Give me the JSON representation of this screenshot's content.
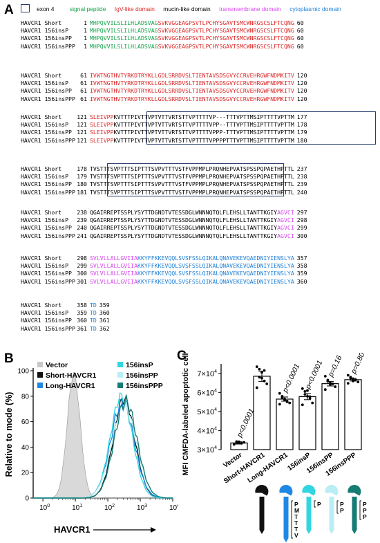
{
  "panels": {
    "a": "A",
    "b": "B",
    "c": "C"
  },
  "legend": {
    "exon4": "exon 4",
    "signal": "signal peptide",
    "igv": "IgV-like domain",
    "mucin": "mucin-like domain",
    "tm": "transmembrane domain",
    "cyto": "cytoplasmic domain"
  },
  "colors": {
    "signal": "#16a34a",
    "igv": "#dc2626",
    "mucin": "#000000",
    "tm": "#d946ef",
    "cyto": "#1d7fd6",
    "exonbox": "#2b3d6d"
  },
  "alignment": [
    {
      "rows": [
        {
          "name": "HAVCR1 Short",
          "start": "1",
          "end": "60",
          "segs": [
            [
              "signal",
              "MHPQVVILSLILHLADSVAG"
            ],
            [
              "igv",
              "SVKVGGEAGPSVTLPCHYSGAVTSMCWNRGSCSLFTCQNG"
            ]
          ]
        },
        {
          "name": "HAVCR1 156insP",
          "start": "1",
          "end": "60",
          "segs": [
            [
              "signal",
              "MHPQVVILSLILHLADSVAG"
            ],
            [
              "igv",
              "SVKVGGEAGPSVTLPCHYSGAVTSMCWNRGSCSLFTCQNG"
            ]
          ]
        },
        {
          "name": "HAVCR1 156insPP",
          "start": "1",
          "end": "60",
          "segs": [
            [
              "signal",
              "MHPQVVILSLILHLADSVAG"
            ],
            [
              "igv",
              "SVKVGGEAGPSVTLPCHYSGAVTSMCWNRGSCSLFTCQNG"
            ]
          ]
        },
        {
          "name": "HAVCR1 156insPPP",
          "start": "1",
          "end": "60",
          "segs": [
            [
              "signal",
              "MHPQVVILSLILHLADSVAG"
            ],
            [
              "igv",
              "SVKVGGEAGPSVTLPCHYSGAVTSMCWNRGSCSLFTCQNG"
            ]
          ]
        }
      ]
    },
    {
      "rows": [
        {
          "name": "HAVCR1 Short",
          "start": "61",
          "end": "120",
          "segs": [
            [
              "igv",
              "IVWTNGTHVTYRKDTRYKLLGDLSRRDVSLTIENTAVSDSGVYCCRVEHRGWFNDMKITV"
            ]
          ]
        },
        {
          "name": "HAVCR1 156insP",
          "start": "61",
          "end": "120",
          "segs": [
            [
              "igv",
              "IVWTNGTHVTYRKDTRYKLLGDLSRRDVSLTIENTAVSDSGVYCCRVEHRGWFNDMKITV"
            ]
          ]
        },
        {
          "name": "HAVCR1 156insPP",
          "start": "61",
          "end": "120",
          "segs": [
            [
              "igv",
              "IVWTNGTHVTYRKDTRYKLLGDLSRRDVSLTIENTAVSDSGVYCCRVEHRGWFNDMKITV"
            ]
          ]
        },
        {
          "name": "HAVCR1 156insPPP",
          "start": "61",
          "end": "120",
          "segs": [
            [
              "igv",
              "IVWTNGTHVTYRKDTRYKLLGDLSRRDVSLTIENTAVSDSGVYCCRVEHRGWFNDMKITV"
            ]
          ]
        }
      ]
    },
    {
      "rows": [
        {
          "name": "HAVCR1 Short",
          "start": "121",
          "end": "177",
          "segs": [
            [
              "igv",
              "SLEIVPP"
            ],
            [
              "mucin",
              "KVTTTPIVTTVPTVTTVRTSTTVPTTTTVP---TTTVPTTMSIPTTTTVPTTM"
            ]
          ]
        },
        {
          "name": "HAVCR1 156insP",
          "start": "121",
          "end": "178",
          "segs": [
            [
              "igv",
              "SLEIVPP"
            ],
            [
              "mucin",
              "KVTTTPIVTTVPTVTTVRTSTTVPTTTTVPP--TTTVPTTMSIPTTTTVPTTM"
            ]
          ]
        },
        {
          "name": "HAVCR1 156insPP",
          "start": "121",
          "end": "179",
          "segs": [
            [
              "igv",
              "SLEIVPP"
            ],
            [
              "mucin",
              "KVTTTPIVTTVPTVTTVRTSTTVPTTTTVPPP-TTTVPTTMSIPTTTTVPTTM"
            ]
          ]
        },
        {
          "name": "HAVCR1 156insPPP",
          "start": "121",
          "end": "180",
          "segs": [
            [
              "igv",
              "SLEIVPP"
            ],
            [
              "mucin",
              "KVTTTPIVTTVPTVTTVRTSTTVPTTTTVPPPPTTTVPTTMSIPTTTTVPTTM"
            ]
          ]
        }
      ]
    },
    {
      "rows": [
        {
          "name": "HAVCR1 Short",
          "start": "178",
          "end": "237",
          "segs": [
            [
              "mucin",
              "TVSTTTSVPTTTSIPTTTSVPVTTTVSTFVPPMPLPRQNHEPVATSPSSPQPAETHPTTL"
            ]
          ]
        },
        {
          "name": "HAVCR1 156insP",
          "start": "179",
          "end": "238",
          "segs": [
            [
              "mucin",
              "TVSTTTSVPTTTSIPTTTSVPVTTTVSTFVPPMPLPRQNHEPVATSPSSPQPAETHPTTL"
            ]
          ]
        },
        {
          "name": "HAVCR1 156insPP",
          "start": "180",
          "end": "239",
          "segs": [
            [
              "mucin",
              "TVSTTTSVPTTTSIPTTTSVPVTTTVSTFVPPMPLPRQNHEPVATSPSSPQPAETHPTTL"
            ]
          ]
        },
        {
          "name": "HAVCR1 156insPPP",
          "start": "181",
          "end": "240",
          "segs": [
            [
              "mucin",
              "TVSTTTSVPTTTSIPTTTSVPVTTTVSTFVPPMPLPRQNHEPVATSPSSPQPAETHPTTL"
            ]
          ]
        }
      ]
    },
    {
      "rows": [
        {
          "name": "HAVCR1 Short",
          "start": "238",
          "end": "297",
          "segs": [
            [
              "mucin",
              "QGAIRREPTSSPLYSYTTDGNDTVTESSDGLWNNNQTQLFLEHSLLTANTTKGIY"
            ],
            [
              "tm",
              "AGVCI"
            ]
          ]
        },
        {
          "name": "HAVCR1 156insP",
          "start": "239",
          "end": "298",
          "segs": [
            [
              "mucin",
              "QGAIRREPTSSPLYSYTTDGNDTVTESSDGLWNNNQTQLFLEHSLLTANTTKGIY"
            ],
            [
              "tm",
              "AGVCI"
            ]
          ]
        },
        {
          "name": "HAVCR1 156insPP",
          "start": "240",
          "end": "299",
          "segs": [
            [
              "mucin",
              "QGAIRREPTSSPLYSYTTDGNDTVTESSDGLWNNNQTQLFLEHSLLTANTTKGIY"
            ],
            [
              "tm",
              "AGVCI"
            ]
          ]
        },
        {
          "name": "HAVCR1 156insPPP",
          "start": "241",
          "end": "300",
          "segs": [
            [
              "mucin",
              "QGAIRREPTSSPLYSYTTDGNDTVTESSDGLWNNNQTQLFLEHSLLTANTTKGIY"
            ],
            [
              "tm",
              "AGVCI"
            ]
          ]
        }
      ]
    },
    {
      "rows": [
        {
          "name": "HAVCR1 Short",
          "start": "298",
          "end": "357",
          "segs": [
            [
              "tm",
              "SVLVLLALLGVIIA"
            ],
            [
              "cyto",
              "KKYFFKKEVQQLSVSFSSLQIKALQNAVEKEVQAEDNIYIENSLYA"
            ]
          ]
        },
        {
          "name": "HAVCR1 156insP",
          "start": "299",
          "end": "358",
          "segs": [
            [
              "tm",
              "SVLVLLALLGVIIA"
            ],
            [
              "cyto",
              "KKYFFKKEVQQLSVSFSSLQIKALQNAVEKEVQAEDNIYIENSLYA"
            ]
          ]
        },
        {
          "name": "HAVCR1 156insPP",
          "start": "300",
          "end": "359",
          "segs": [
            [
              "tm",
              "SVLVLLALLGVIIA"
            ],
            [
              "cyto",
              "KKYFFKKEVQQLSVSFSSLQIKALQNAVEKEVQAEDNIYIENSLYA"
            ]
          ]
        },
        {
          "name": "HAVCR1 156insPPP",
          "start": "301",
          "end": "360",
          "segs": [
            [
              "tm",
              "SVLVLLALLGVIIA"
            ],
            [
              "cyto",
              "KKYFFKKEVQQLSVSFSSLQIKALQNAVEKEVQAEDNIYIENSLYA"
            ]
          ]
        }
      ]
    },
    {
      "rows": [
        {
          "name": "HAVCR1 Short",
          "start": "358",
          "end": "359",
          "segs": [
            [
              "cyto",
              "TD"
            ]
          ]
        },
        {
          "name": "HAVCR1 156insP",
          "start": "359",
          "end": "360",
          "segs": [
            [
              "cyto",
              "TD"
            ]
          ]
        },
        {
          "name": "HAVCR1 156insPP",
          "start": "360",
          "end": "361",
          "segs": [
            [
              "cyto",
              "TD"
            ]
          ]
        },
        {
          "name": "HAVCR1 156insPPP",
          "start": "361",
          "end": "362",
          "segs": [
            [
              "cyto",
              "TD"
            ]
          ]
        }
      ]
    }
  ],
  "flow": {
    "ylabel": "Relative to mode (%)",
    "xlabel": "HAVCR1",
    "yticks": [
      "0",
      "20",
      "40",
      "60",
      "80",
      "100"
    ],
    "legend_left": [
      {
        "label": "Vector",
        "color": "#c8c8c8"
      },
      {
        "label": "Short-HAVCR1",
        "color": "#111111"
      },
      {
        "label": "Long-HAVCR1",
        "color": "#1e88e5"
      }
    ],
    "legend_right": [
      {
        "label": "156insP",
        "color": "#33d6e0"
      },
      {
        "label": "156insPP",
        "color": "#b8eef4"
      },
      {
        "label": "156insPPP",
        "color": "#167d75"
      }
    ]
  },
  "chart_data": {
    "type": "bar",
    "ylabel": "MFI CMFDA-labeled apoptotic cells",
    "ylim": [
      30000,
      75000
    ],
    "yticks": [
      30000,
      40000,
      50000,
      60000,
      70000
    ],
    "ytick_labels": {
      "base": "×10",
      "mantissas": [
        "3",
        "4",
        "5",
        "6",
        "7"
      ],
      "exponent": "4"
    },
    "categories": [
      "Vector",
      "Short-HAVCR1",
      "Long-HAVCR1",
      "156insP",
      "156insPP",
      "156insPPP"
    ],
    "values": [
      33500,
      68500,
      56500,
      57800,
      64600,
      66700
    ],
    "errors": [
      600,
      2700,
      1100,
      1600,
      1200,
      700
    ],
    "pvalues": [
      "p<0.0001",
      "",
      "p<0.0001",
      "p<0.0001",
      "p=0.16",
      "p=0.80"
    ],
    "points": [
      [
        32900,
        33600,
        34100,
        33300,
        33800,
        32700,
        34200,
        33400
      ],
      [
        73500,
        72200,
        70500,
        66000,
        64500,
        62500,
        68000,
        67500,
        71500
      ],
      [
        59500,
        58000,
        56500,
        55500,
        54500,
        53800,
        57200,
        56000,
        55100
      ],
      [
        62000,
        60500,
        58000,
        57000,
        54500,
        53500,
        59000,
        61000,
        57800
      ],
      [
        68500,
        66500,
        65000,
        64500,
        63000,
        61500,
        65800,
        64200
      ],
      [
        69000,
        68000,
        67200,
        66500,
        65500,
        64800,
        67500,
        66000
      ]
    ]
  },
  "schematic": {
    "insertion_labels": [
      [
        "P",
        "M",
        "T",
        "T",
        "T",
        "V"
      ],
      [
        "P"
      ],
      [
        "P",
        "P"
      ],
      [
        "P",
        "P",
        "P"
      ]
    ]
  }
}
